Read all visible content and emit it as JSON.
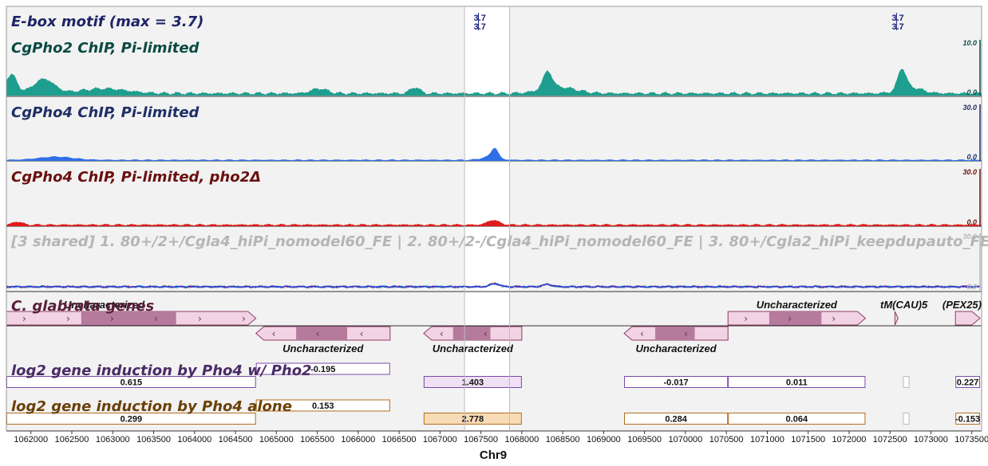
{
  "tracks": {
    "motif": {
      "title": "E-box motif (max = 3.7)",
      "hits": [
        {
          "pos": 1067470,
          "labels": [
            "3.7",
            "3.7"
          ]
        },
        {
          "pos": 1072580,
          "labels": [
            "3.7",
            "3.7"
          ]
        }
      ]
    },
    "pho2": {
      "title": "CgPho2 ChIP, Pi-limited",
      "scale_max": "10.0",
      "scale_min": "0.0",
      "color": "#1e9e8e",
      "title_color": "#0a4a42"
    },
    "pho4": {
      "title": "CgPho4 ChIP, Pi-limited",
      "scale_max": "30.0",
      "scale_min": "0.0",
      "color": "#2f6fe8",
      "title_color": "#1f2f66"
    },
    "pho4_pho2d": {
      "title": "CgPho4 ChIP, Pi-limited, pho2Δ",
      "scale_max": "30.0",
      "scale_min": "0.0",
      "color": "#e01b1b",
      "title_color": "#6a0f0f"
    },
    "shared": {
      "title": "[3 shared]  1. 80+/2+/Cgla4_hiPi_nomodel60_FE | 2. 80+/2-/Cgla4_hiPi_nomodel60_FE | 3. 80+/Cgla2_hiPi_keepdupauto_FE",
      "scale_max": "30.0",
      "scale_min": "0.0"
    },
    "genes": {
      "title": "C. glabrata genes",
      "title_color": "#5a1f3a",
      "items": [
        {
          "label": "Uncharacterized",
          "start": 1061700,
          "end": 1064750,
          "strand": "+",
          "row": 0
        },
        {
          "label": "Uncharacterized",
          "start": 1064750,
          "end": 1066390,
          "strand": "-",
          "row": 1
        },
        {
          "label": "Uncharacterized",
          "start": 1066800,
          "end": 1068000,
          "strand": "-",
          "row": 1
        },
        {
          "label": "Uncharacterized",
          "start": 1069250,
          "end": 1070520,
          "strand": "-",
          "row": 1
        },
        {
          "label": "Uncharacterized",
          "start": 1070520,
          "end": 1072200,
          "strand": "+",
          "row": 0
        },
        {
          "label": "tM(CAU)5",
          "start": 1072560,
          "end": 1072620,
          "strand": "+",
          "row": 0
        },
        {
          "label": "(PEX25)",
          "start": 1073300,
          "end": 1073600,
          "strand": "+",
          "row": 0
        }
      ]
    },
    "induction_pho4_pho2": {
      "title": "log2 gene induction by Pho4 w/ Pho2",
      "color": "#7a4aa8",
      "values": [
        {
          "start": 1061700,
          "end": 1064750,
          "value": "0.615",
          "row": 1,
          "fill": "#ffffff"
        },
        {
          "start": 1064750,
          "end": 1066390,
          "value": "-0.195",
          "row": 0,
          "fill": "#ffffff"
        },
        {
          "start": 1066800,
          "end": 1068000,
          "value": "1.403",
          "row": 1,
          "fill": "#efe0f5"
        },
        {
          "start": 1069250,
          "end": 1070520,
          "value": "-0.017",
          "row": 1,
          "fill": "#ffffff"
        },
        {
          "start": 1070520,
          "end": 1072200,
          "value": "0.011",
          "row": 1,
          "fill": "#ffffff"
        },
        {
          "start": 1073300,
          "end": 1073600,
          "value": "0.227",
          "row": 1,
          "fill": "#ffffff"
        }
      ]
    },
    "induction_pho4_alone": {
      "title": "log2 gene induction by Pho4 alone",
      "color": "#b06e1a",
      "values": [
        {
          "start": 1061700,
          "end": 1064750,
          "value": "0.299",
          "row": 1,
          "fill": "#ffffff"
        },
        {
          "start": 1064750,
          "end": 1066390,
          "value": "0.153",
          "row": 0,
          "fill": "#ffffff"
        },
        {
          "start": 1066800,
          "end": 1068000,
          "value": "2.778",
          "row": 1,
          "fill": "#f8dcb8"
        },
        {
          "start": 1069250,
          "end": 1070520,
          "value": "0.284",
          "row": 1,
          "fill": "#ffffff"
        },
        {
          "start": 1070520,
          "end": 1072200,
          "value": "0.064",
          "row": 1,
          "fill": "#ffffff"
        },
        {
          "start": 1073300,
          "end": 1073600,
          "value": "-0.153",
          "row": 1,
          "fill": "#ffffff"
        }
      ]
    }
  },
  "axis": {
    "chromosome": "Chr9",
    "ticks": [
      "1062000",
      "1062500",
      "1063000",
      "1063500",
      "1064000",
      "1064500",
      "1065000",
      "1065500",
      "1066000",
      "1066500",
      "1067000",
      "1067500",
      "1068000",
      "1068500",
      "1069000",
      "1069500",
      "1070000",
      "1070500",
      "1071000",
      "1071500",
      "1072000",
      "1072500",
      "1073000",
      "1073500"
    ]
  },
  "highlight": {
    "start": 1067300,
    "end": 1067850
  }
}
